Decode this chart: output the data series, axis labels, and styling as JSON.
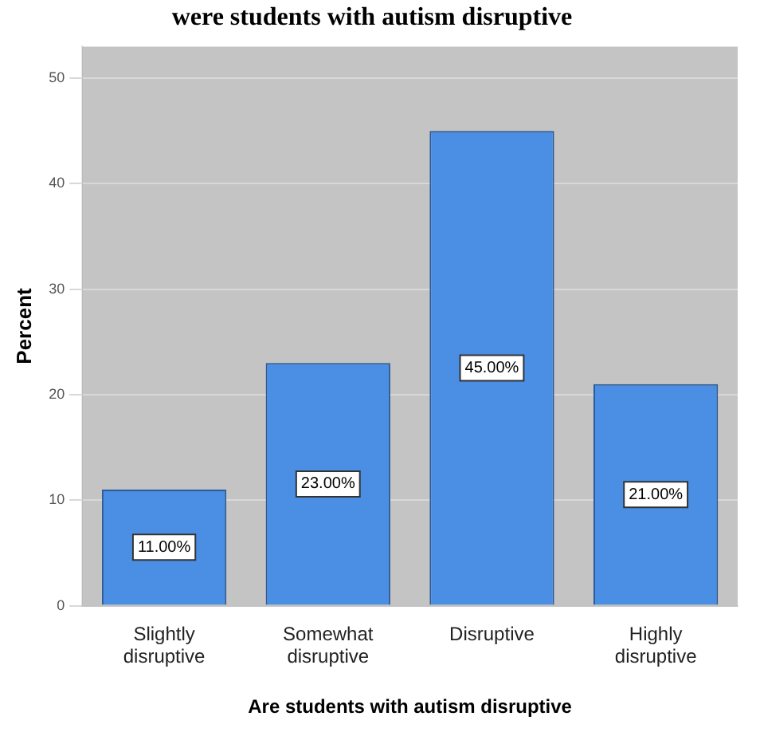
{
  "chart_data": {
    "type": "bar",
    "title": "were students with autism disruptive",
    "categories": [
      "Slightly disruptive",
      "Somewhat disruptive",
      "Disruptive",
      "Highly disruptive"
    ],
    "values": [
      11,
      23,
      45,
      21
    ],
    "value_labels": [
      "11.00%",
      "23.00%",
      "45.00%",
      "21.00%"
    ],
    "color": "#4a8fe3",
    "xlabel": "Are students with autism disruptive",
    "ylabel": "Percent",
    "ylim": [
      0,
      53
    ],
    "yticks": [
      0,
      10,
      20,
      30,
      40,
      50
    ],
    "grid": "y",
    "legend": false
  }
}
